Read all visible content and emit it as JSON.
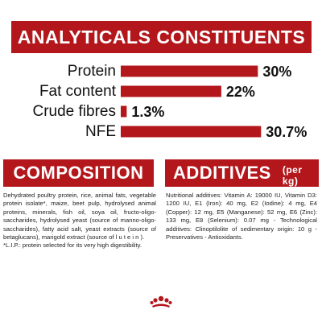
{
  "banner": {
    "title": "ANALYTICALS CONSTITUENTS"
  },
  "chart_data": {
    "type": "bar",
    "orientation": "horizontal",
    "title": "ANALYTICALS CONSTITUENTS",
    "categories": [
      "Protein",
      "Fat content",
      "Crude fibres",
      "NFE"
    ],
    "values": [
      30,
      22,
      1.3,
      30.7
    ],
    "value_labels": [
      "30%",
      "22%",
      "1.3%",
      "30.7%"
    ],
    "xlim": [
      0,
      31
    ],
    "bar_color": "#b3171c",
    "grid": false
  },
  "composition": {
    "title": "COMPOSITION",
    "text": "Dehydrated poultry protein, rice, animal fats, vegetable protein isolate*, maize, beet pulp, hydrolysed animal proteins, minerals, fish oil, soya oil, fructo-oligo-saccharides, hydrolysed yeast (source of manno-oligo-saccharides), fatty acid salt, yeast extracts (source of betaglucans), marigold extract (source of l u t e i n ).",
    "footnote": "*L.I.P.: protein selected for its very high digestibility."
  },
  "additives": {
    "title": "ADDITIVES",
    "unit": "(per kg)",
    "text": "Nutritional additives: Vitamin A: 19000 IU, Vitamin D3: 1200 IU, E1 (Iron): 40 mg, E2 (Iodine): 4 mg, E4 (Copper): 12 mg, E5 (Manganese): 52 mg, E6 (Zinc): 133 mg, E8 (Selenium): 0.07 mg - Technological additives: Clinoptilolite of sedimentary origin: 10 g - Preservatives - Antioxidants."
  },
  "colors": {
    "accent": "#b3171c"
  },
  "logo": {
    "icon": "royal-canin-crown-icon"
  }
}
